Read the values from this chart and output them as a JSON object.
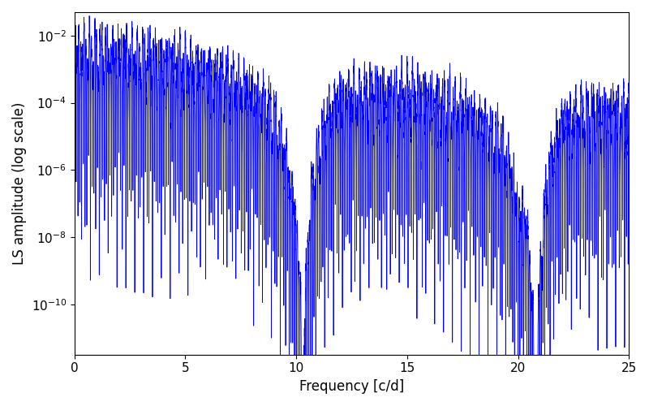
{
  "xlabel": "Frequency [c/d]",
  "ylabel": "LS amplitude (log scale)",
  "xlim": [
    0,
    25
  ],
  "ylim_log_min": -11.5,
  "ylim_log_max": -1.3,
  "line_color": "#0000ff",
  "line_width": 0.6,
  "figsize": [
    8.0,
    5.0
  ],
  "dpi": 100,
  "freq_max": 25.0,
  "n_points": 8000,
  "seed": 123
}
